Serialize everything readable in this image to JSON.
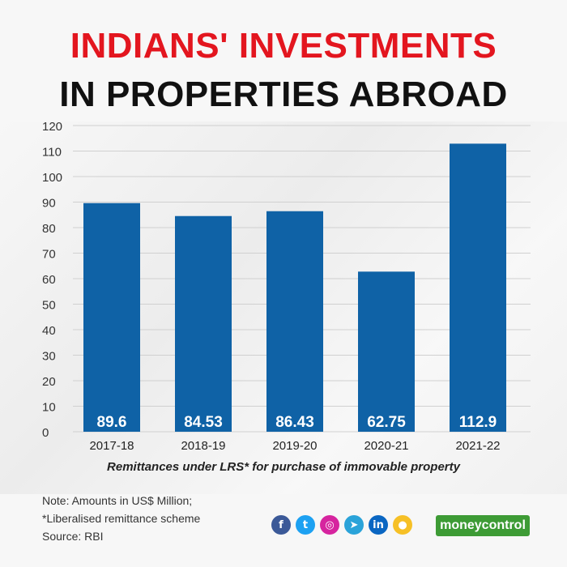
{
  "header": {
    "title_line1": "INDIANS' INVESTMENTS",
    "title_line2": "IN PROPERTIES ABROAD"
  },
  "chart_data": {
    "type": "bar",
    "categories": [
      "2017-18",
      "2018-19",
      "2019-20",
      "2020-21",
      "2021-22"
    ],
    "values": [
      89.6,
      84.53,
      86.43,
      62.75,
      112.9
    ],
    "value_labels": [
      "89.6",
      "84.53",
      "86.43",
      "62.75",
      "112.9"
    ],
    "yticks": [
      "0",
      "10",
      "20",
      "30",
      "40",
      "50",
      "60",
      "70",
      "80",
      "90",
      "100",
      "110",
      "120"
    ],
    "ylim": [
      0,
      120
    ],
    "xlabel": "Remittances under LRS* for purchase of immovable property",
    "grid": true,
    "bar_color": "#0f62a6"
  },
  "footer": {
    "note_line1": "Note: Amounts in US$ Million;",
    "note_line2": "*Liberalised remittance scheme",
    "note_line3": "Source: RBI",
    "social_icons": [
      {
        "name": "facebook-icon",
        "glyph": "f",
        "color": "#3b5998"
      },
      {
        "name": "twitter-icon",
        "glyph": "t",
        "color": "#1da1f2"
      },
      {
        "name": "instagram-icon",
        "glyph": "◎",
        "color": "#d6249f"
      },
      {
        "name": "telegram-icon",
        "glyph": "➤",
        "color": "#2aa3d9"
      },
      {
        "name": "linkedin-icon",
        "glyph": "in",
        "color": "#0a66c2"
      },
      {
        "name": "koo-icon",
        "glyph": "●",
        "color": "#f6c026"
      }
    ],
    "logo_text": "moneycontrol"
  }
}
